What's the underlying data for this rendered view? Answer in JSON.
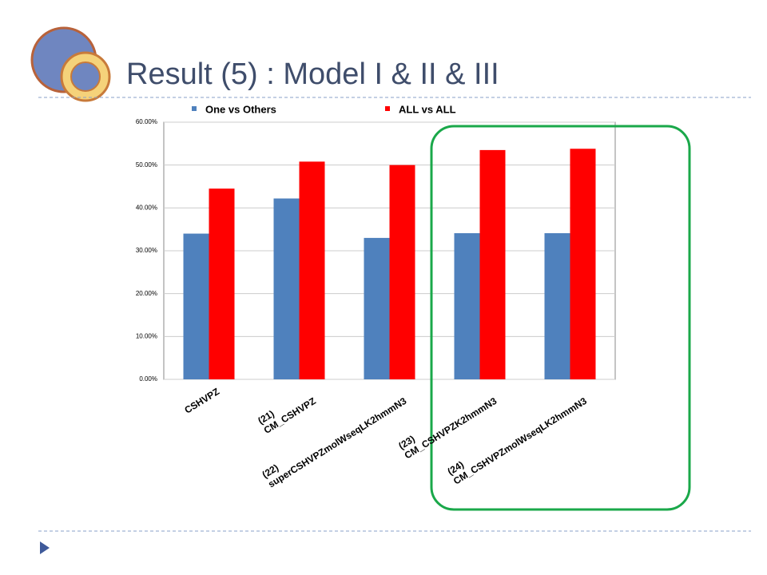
{
  "slide": {
    "title": "Result (5) :  Model I & II & III"
  },
  "chart_data": {
    "type": "bar",
    "categories": [
      "CSHVPZ",
      "(21)\nCM_CSHVPZ",
      "(22)\nsuperCSHVPZmolWseqLK2hmmN3",
      "(23)\nCM_CSHVPZK2hmmN3",
      "(24)\nCM_CSHVPZmolWseqLK2hmmN3"
    ],
    "series": [
      {
        "name": "One vs Others",
        "color": "#4f81bd",
        "values": [
          34.0,
          42.2,
          33.0,
          34.1,
          34.1
        ]
      },
      {
        "name": "ALL vs ALL",
        "color": "#ff0000",
        "values": [
          44.5,
          50.8,
          50.0,
          53.5,
          53.8
        ]
      }
    ],
    "ylim": [
      0,
      60
    ],
    "yticks": [
      {
        "value": 0,
        "label": "0.00%"
      },
      {
        "value": 10,
        "label": "10.00%"
      },
      {
        "value": 20,
        "label": "20.00%"
      },
      {
        "value": 30,
        "label": "30.00%"
      },
      {
        "value": 40,
        "label": "40.00%"
      },
      {
        "value": 50,
        "label": "50.00%"
      },
      {
        "value": 60,
        "label": "60.00%"
      }
    ],
    "grid": true
  }
}
